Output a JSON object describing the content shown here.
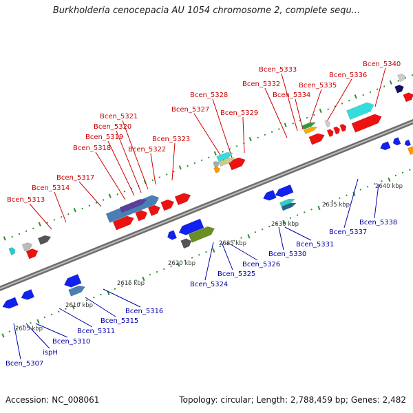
{
  "title": "Burkholderia cenocepacia AU 1054 chromosome 2, complete sequ...",
  "footer": {
    "accession": "Accession: NC_008061",
    "summary": "Topology: circular; Length: 2,788,459 bp; Genes: 2,482"
  },
  "colors": {
    "forward_label": "#cc0000",
    "reverse_label": "#0000aa",
    "forward_gene": "#ee1111",
    "reverse_gene": "#1122ee",
    "backbone": "#8a8a8a",
    "tick": "#2e8b2e",
    "scale_label": "#333333"
  },
  "scale_labels": [
    "2605 kbp",
    "2610 kbp",
    "2615 kbp",
    "2620 kbp",
    "2625 kbp",
    "2630 kbp",
    "2635 kbp",
    "2640 kbp"
  ],
  "labels_forward": [
    "Bcen_5313",
    "Bcen_5314",
    "Bcen_5317",
    "Bcen_5318",
    "Bcen_5319",
    "Bcen_5320",
    "Bcen_5321",
    "Bcen_5322",
    "Bcen_5323",
    "Bcen_5327",
    "Bcen_5328",
    "Bcen_5329",
    "Bcen_5332",
    "Bcen_5333",
    "Bcen_5334",
    "Bcen_5335",
    "Bcen_5336",
    "Bcen_5340"
  ],
  "labels_reverse": [
    "Bcen_5307",
    "ispH",
    "Bcen_5310",
    "Bcen_5311",
    "Bcen_5315",
    "Bcen_5316",
    "Bcen_5324",
    "Bcen_5325",
    "Bcen_5326",
    "Bcen_5330",
    "Bcen_5331",
    "Bcen_5337",
    "Bcen_5338"
  ]
}
